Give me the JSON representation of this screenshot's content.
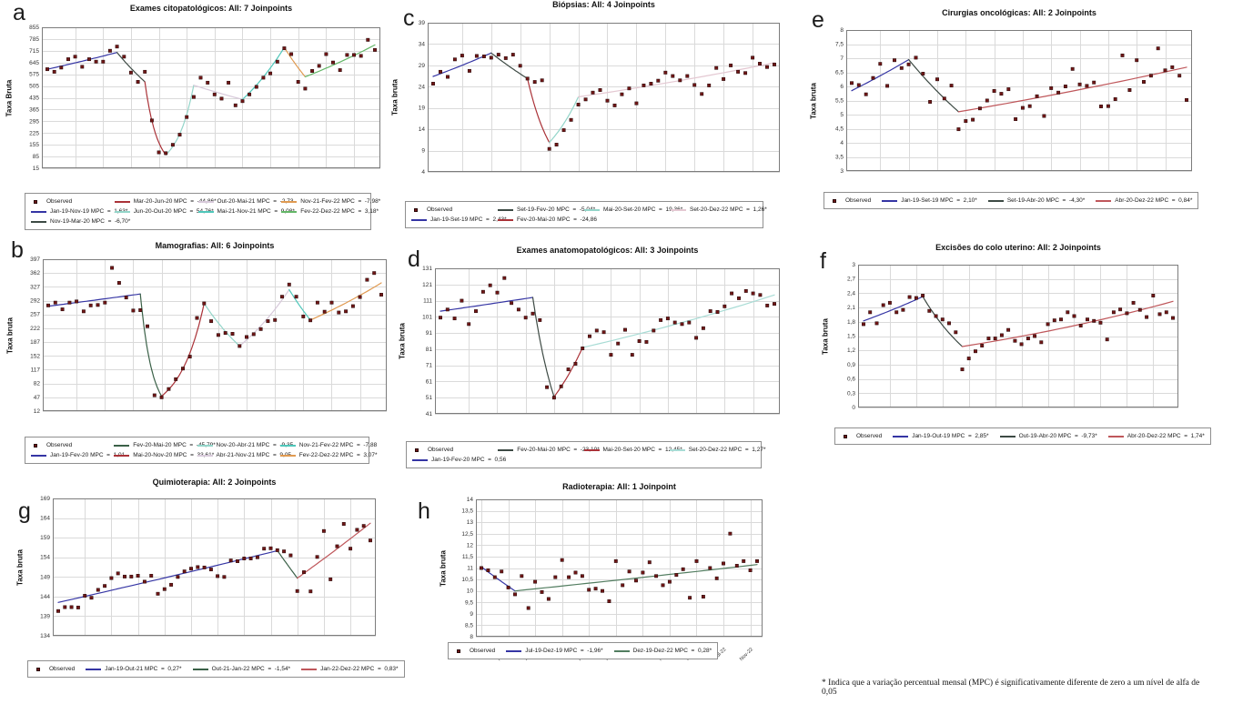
{
  "footnote": "* Indica que a variação percentual mensal (MPC) é significativamente diferente de zero a um nível de alfa de 0,05",
  "colors": {
    "observed_marker": "#701616",
    "grid": "#dadada",
    "plot_border": "#7c7c7c",
    "tick_text": "#333333"
  },
  "chart_data": [
    {
      "panel_label": "a",
      "type": "scatter",
      "title": "Exames citopatológicos: All: 7 Joinpoints",
      "ylabel": "Taxa Bruta",
      "xlabel": "",
      "observed_label": "Observed",
      "ylim": [
        15,
        855
      ],
      "ytick_values": [
        855,
        785,
        715,
        645,
        575,
        505,
        435,
        365,
        295,
        225,
        155,
        85,
        15
      ],
      "ytick_labels": [
        "855",
        "785",
        "715",
        "645",
        "575",
        "505",
        "435",
        "365",
        "295",
        "225",
        "155",
        "85",
        "15"
      ],
      "xtick_labels": [],
      "observed": [
        605,
        590,
        615,
        665,
        680,
        620,
        665,
        650,
        650,
        715,
        740,
        680,
        585,
        530,
        590,
        300,
        110,
        105,
        155,
        215,
        320,
        440,
        555,
        525,
        455,
        430,
        525,
        390,
        415,
        455,
        500,
        555,
        580,
        650,
        730,
        695,
        530,
        490,
        595,
        625,
        695,
        645,
        600,
        690,
        690,
        685,
        780,
        720
      ],
      "segments": [
        {
          "label": "Jan-19-Nov-19 MPC  =  1,63*",
          "color": "#3535a4",
          "from": 0,
          "to": 10,
          "v0": 605,
          "v1": 705
        },
        {
          "label": "Nov-19-Mar-20 MPC  =  -6,70*",
          "color": "#3d4a44",
          "from": 10,
          "to": 14,
          "v0": 705,
          "v1": 530
        },
        {
          "label": "Mar-20-Jun-20 MPC  =  -44,86*",
          "color": "#aa3238",
          "from": 14,
          "to": 17,
          "v0": 530,
          "v1": 95
        },
        {
          "label": "Jun-20-Out-20 MPC  =  54,76*",
          "color": "#93d5c9",
          "from": 17,
          "to": 21,
          "v0": 95,
          "v1": 510
        },
        {
          "label": "Out-20-Mai-21 MPC  =  -2,73",
          "color": "#d7c9da",
          "from": 21,
          "to": 28,
          "v0": 510,
          "v1": 425
        },
        {
          "label": "Mai-21-Nov-21 MPC  =  9,08*",
          "color": "#4fc7ba",
          "from": 28,
          "to": 34,
          "v0": 425,
          "v1": 735
        },
        {
          "label": "Nov-21-Fev-22 MPC  =  -7,98*",
          "color": "#e09a51",
          "from": 34,
          "to": 37,
          "v0": 735,
          "v1": 560
        },
        {
          "label": "Fev-22-Dez-22 MPC  =  3,18*",
          "color": "#63b667",
          "from": 37,
          "to": 47,
          "v0": 560,
          "v1": 750
        }
      ]
    },
    {
      "panel_label": "b",
      "type": "scatter",
      "title": "Mamografias: All: 6 Joinpoints",
      "ylabel": "Taxa bruta",
      "xlabel": "",
      "observed_label": "Observed",
      "ylim": [
        12,
        397
      ],
      "ytick_values": [
        397,
        362,
        327,
        292,
        257,
        222,
        187,
        152,
        117,
        82,
        47,
        12
      ],
      "ytick_labels": [
        "397",
        "362",
        "327",
        "292",
        "257",
        "222",
        "187",
        "152",
        "117",
        "82",
        "47",
        "12"
      ],
      "xtick_labels": [],
      "observed": [
        280,
        287,
        270,
        287,
        290,
        265,
        280,
        281,
        287,
        375,
        337,
        300,
        267,
        268,
        227,
        52,
        47,
        68,
        93,
        120,
        150,
        248,
        285,
        240,
        205,
        210,
        208,
        177,
        200,
        207,
        220,
        240,
        243,
        302,
        333,
        302,
        252,
        242,
        287,
        264,
        287,
        262,
        265,
        278,
        301,
        345,
        362,
        307
      ],
      "segments": [
        {
          "label": "Jan-19-Fev-20 MPC  =  1,01",
          "color": "#3535a4",
          "from": 0,
          "to": 13,
          "v0": 278,
          "v1": 309
        },
        {
          "label": "Fev-20-Mai-20 MPC  =  -45,79*",
          "color": "#3b6148",
          "from": 13,
          "to": 16,
          "v0": 309,
          "v1": 50
        },
        {
          "label": "Mai-20-Nov-20 MPC  =  33,61*",
          "color": "#aa3238",
          "from": 16,
          "to": 22,
          "v0": 50,
          "v1": 285
        },
        {
          "label": "Nov-20-Abr-21 MPC  =  -9,35",
          "color": "#93d5c9",
          "from": 22,
          "to": 27,
          "v0": 285,
          "v1": 177
        },
        {
          "label": "Abr-21-Nov-21 MPC  =  9,05",
          "color": "#d7c9da",
          "from": 27,
          "to": 34,
          "v0": 177,
          "v1": 320
        },
        {
          "label": "Nov-21-Fev-22 MPC  =  -7,88",
          "color": "#4fc7ba",
          "from": 34,
          "to": 37,
          "v0": 320,
          "v1": 243
        },
        {
          "label": "Fev-22-Dez-22 MPC  =  3,07*",
          "color": "#e09a51",
          "from": 37,
          "to": 47,
          "v0": 243,
          "v1": 337
        }
      ]
    },
    {
      "panel_label": "c",
      "type": "scatter",
      "title": "Biópsias: All: 4 Joinpoints",
      "ylabel": "Taxa bruta",
      "xlabel": "",
      "observed_label": "Observed",
      "ylim": [
        4,
        39
      ],
      "ytick_values": [
        39,
        34,
        29,
        24,
        19,
        14,
        9,
        4
      ],
      "ytick_labels": [
        "39",
        "34",
        "29",
        "24",
        "19",
        "14",
        "9",
        "4"
      ],
      "xtick_labels": [],
      "observed": [
        24.7,
        27.5,
        26.3,
        30.4,
        31.3,
        27.7,
        31.2,
        31.1,
        30.8,
        31.5,
        30.7,
        31.5,
        28.9,
        25.9,
        25.1,
        25.5,
        9.4,
        10.4,
        13.8,
        16.2,
        19.8,
        21.0,
        22.6,
        23.2,
        20.7,
        19.6,
        22.2,
        23.6,
        20.1,
        24.3,
        24.7,
        25.4,
        27.3,
        26.5,
        25.5,
        26.5,
        24.4,
        22.3,
        24.3,
        28.4,
        25.8,
        29.0,
        27.5,
        27.2,
        30.8,
        29.4,
        28.6,
        29.2
      ],
      "segments": [
        {
          "label": "Jan-19-Set-19 MPC  =  2,43*",
          "color": "#3535a4",
          "from": 0,
          "to": 8,
          "v0": 26.4,
          "v1": 31.9
        },
        {
          "label": "Set-19-Fev-20 MPC  =  -5,04*",
          "color": "#3d4a44",
          "from": 8,
          "to": 13,
          "v0": 31.9,
          "v1": 25.9
        },
        {
          "label": "Fev-20-Mai-20 MPC  =  -24,86",
          "color": "#aa3238",
          "from": 13,
          "to": 16,
          "v0": 25.9,
          "v1": 10.9
        },
        {
          "label": "Mai-20-Set-20 MPC  =  19,36*",
          "color": "#93d5c9",
          "from": 16,
          "to": 20,
          "v0": 10.9,
          "v1": 21.6
        },
        {
          "label": "Set-20-Dez-22 MPC  =  1,26*",
          "color": "#e4c8d2",
          "from": 20,
          "to": 47,
          "v0": 21.6,
          "v1": 29.6
        }
      ]
    },
    {
      "panel_label": "d",
      "type": "scatter",
      "title": "Exames anatomopatológicos: All: 3 Joinpoints",
      "ylabel": "Taxa bruta",
      "xlabel": "",
      "observed_label": "Observed",
      "ylim": [
        41,
        131
      ],
      "ytick_values": [
        131,
        121,
        111,
        101,
        91,
        81,
        71,
        61,
        51,
        41
      ],
      "ytick_labels": [
        "131",
        "121",
        "111",
        "101",
        "91",
        "81",
        "71",
        "61",
        "51",
        "41"
      ],
      "xtick_labels": [],
      "observed": [
        100.5,
        105.5,
        100,
        111,
        96.5,
        104.5,
        116.5,
        120.5,
        116,
        125,
        109.5,
        105.5,
        100.5,
        103,
        99,
        57.5,
        51,
        58,
        68.5,
        72,
        81.5,
        89,
        92.5,
        91.5,
        77.5,
        84.5,
        93,
        77.5,
        86,
        85.5,
        92.5,
        99,
        100,
        97.5,
        96.5,
        97.5,
        88,
        94,
        104.5,
        104,
        107.5,
        115.5,
        112.5,
        117,
        115.5,
        114.5,
        108,
        109
      ],
      "segments": [
        {
          "label": "Jan-19-Fev-20 MPC  =  0,56",
          "color": "#3535a4",
          "from": 0,
          "to": 13,
          "v0": 104.5,
          "v1": 113
        },
        {
          "label": "Fev-20-Mai-20 MPC  =  -23,10*",
          "color": "#3d4a44",
          "from": 13,
          "to": 16,
          "v0": 113,
          "v1": 51.5
        },
        {
          "label": "Mai-20-Set-20 MPC  =  12,45*",
          "color": "#aa3238",
          "from": 16,
          "to": 20,
          "v0": 51.5,
          "v1": 82
        },
        {
          "label": "Set-20-Dez-22 MPC  =  1,27*",
          "color": "#a8dcd5",
          "from": 20,
          "to": 47,
          "v0": 82,
          "v1": 114.5
        }
      ]
    },
    {
      "panel_label": "e",
      "type": "scatter",
      "title": "Cirurgias oncológicas: All: 2 Joinpoints",
      "ylabel": "Taxa bruta",
      "xlabel": "",
      "observed_label": "Observed",
      "ylim": [
        3,
        8
      ],
      "ytick_values": [
        8,
        7.5,
        7,
        6.5,
        6,
        5.5,
        5,
        4.5,
        4,
        3.5,
        3
      ],
      "ytick_labels": [
        "8",
        "7,5",
        "7",
        "6,5",
        "6",
        "5,5",
        "5",
        "4,5",
        "4",
        "3,5",
        "3"
      ],
      "xtick_labels": [],
      "observed": [
        6.12,
        6.05,
        5.72,
        6.3,
        6.8,
        6.02,
        6.93,
        6.65,
        6.78,
        7.02,
        6.45,
        5.45,
        6.25,
        5.57,
        6.03,
        4.48,
        4.77,
        4.82,
        5.22,
        5.5,
        5.84,
        5.74,
        5.9,
        4.84,
        5.24,
        5.3,
        5.65,
        4.95,
        5.94,
        5.78,
        6.0,
        6.62,
        6.07,
        6.02,
        6.14,
        5.29,
        5.3,
        5.55,
        7.1,
        5.87,
        6.93,
        6.16,
        6.38,
        7.35,
        6.57,
        6.68,
        6.38,
        5.52
      ],
      "segments": [
        {
          "label": "Jan-19-Set-19 MPC  =  2,10*",
          "color": "#3535a4",
          "from": 0,
          "to": 8,
          "v0": 5.85,
          "v1": 6.95
        },
        {
          "label": "Set-19-Abr-20 MPC  =  -4,30*",
          "color": "#3d4a44",
          "from": 8,
          "to": 15,
          "v0": 6.95,
          "v1": 5.1
        },
        {
          "label": "Abr-20-Dez-22 MPC  =  0,84*",
          "color": "#bf575b",
          "from": 15,
          "to": 47,
          "v0": 5.1,
          "v1": 6.68
        }
      ]
    },
    {
      "panel_label": "f",
      "type": "scatter",
      "title": "Excisões do colo uterino: All: 2 Joinpoints",
      "ylabel": "Taxa bruta",
      "xlabel": "",
      "observed_label": "Observed",
      "ylim": [
        0,
        3
      ],
      "ytick_values": [
        3,
        2.7,
        2.4,
        2.1,
        1.8,
        1.5,
        1.2,
        0.9,
        0.6,
        0.3,
        0
      ],
      "ytick_labels": [
        "3",
        "2,7",
        "2,4",
        "2,1",
        "1,8",
        "1,5",
        "1,2",
        "0,9",
        "0,6",
        "0,3",
        "0"
      ],
      "xtick_labels": [],
      "observed": [
        1.75,
        2.0,
        1.77,
        2.15,
        2.2,
        2.0,
        2.05,
        2.32,
        2.3,
        2.35,
        2.03,
        1.92,
        1.85,
        1.77,
        1.58,
        0.8,
        1.03,
        1.18,
        1.3,
        1.45,
        1.45,
        1.52,
        1.63,
        1.4,
        1.33,
        1.45,
        1.5,
        1.37,
        1.75,
        1.83,
        1.85,
        2.0,
        1.92,
        1.72,
        1.85,
        1.82,
        1.78,
        1.43,
        2.0,
        2.06,
        1.98,
        2.2,
        2.05,
        1.9,
        2.35,
        1.96,
        2.0,
        1.88
      ],
      "segments": [
        {
          "label": "Jan-19-Out-19 MPC  =  2,85*",
          "color": "#3535a4",
          "from": 0,
          "to": 9,
          "v0": 1.82,
          "v1": 2.33
        },
        {
          "label": "Out-19-Abr-20 MPC  =  -9,73*",
          "color": "#3d4a44",
          "from": 9,
          "to": 15,
          "v0": 2.33,
          "v1": 1.28
        },
        {
          "label": "Abr-20-Dez-22 MPC  =  1,74*",
          "color": "#bf575b",
          "from": 15,
          "to": 47,
          "v0": 1.28,
          "v1": 2.23
        }
      ]
    },
    {
      "panel_label": "g",
      "type": "scatter",
      "title": "Quimioterapia: All: 2 Joinpoints",
      "ylabel": "Taxa bruta",
      "xlabel": "",
      "observed_label": "Observed",
      "ylim": [
        134,
        169
      ],
      "ytick_values": [
        169,
        164,
        159,
        154,
        149,
        144,
        139,
        134
      ],
      "ytick_labels": [
        "169",
        "164",
        "159",
        "154",
        "149",
        "144",
        "139",
        "134"
      ],
      "xtick_labels": [],
      "observed": [
        140.3,
        141.3,
        141.3,
        141.2,
        144.2,
        143.7,
        145.7,
        146.7,
        148.7,
        149.9,
        149.1,
        149.1,
        149.3,
        147.8,
        149.3,
        144.7,
        145.9,
        147.0,
        149.0,
        150.4,
        151.1,
        151.5,
        151.4,
        150.9,
        149.2,
        149.0,
        153.2,
        153.0,
        153.7,
        153.7,
        154.0,
        156.2,
        156.3,
        155.8,
        155.5,
        154.5,
        145.4,
        150.2,
        145.3,
        154.1,
        160.7,
        148.4,
        156.8,
        162.5,
        156.2,
        161.0,
        162.0,
        158.3
      ],
      "segments": [
        {
          "label": "Jan-19-Out-21 MPC  =  0,27*",
          "color": "#3535a4",
          "from": 0,
          "to": 33,
          "v0": 142.5,
          "v1": 155.7
        },
        {
          "label": "Out-21-Jan-22 MPC  =  -1,54*",
          "color": "#3b6148",
          "from": 33,
          "to": 36,
          "v0": 155.7,
          "v1": 148.7
        },
        {
          "label": "Jan-22-Dez-22 MPC  =  0,83*",
          "color": "#bf575b",
          "from": 36,
          "to": 47,
          "v0": 148.7,
          "v1": 162.7
        }
      ]
    },
    {
      "panel_label": "h",
      "type": "scatter",
      "title": "Radioterapia: All: 1 Joinpoint",
      "ylabel": "Taxa bruta",
      "xlabel": "",
      "observed_label": "Observed",
      "ylim": [
        8,
        14
      ],
      "ytick_values": [
        14,
        13.5,
        13,
        12.5,
        12,
        11.5,
        11,
        10.5,
        10,
        9.5,
        9,
        8.5,
        8
      ],
      "ytick_labels": [
        "14",
        "13,5",
        "13",
        "12,5",
        "12",
        "11,5",
        "11",
        "10,5",
        "10",
        "9,5",
        "9",
        "8,5",
        "8"
      ],
      "xtick_labels": [
        "Jul-19",
        "Nov-19",
        "Mar-20",
        "Jul-20",
        "Nov-20",
        "Mar-21",
        "Jul-21",
        "Nov-21",
        "Mar-22",
        "Jul-22",
        "Nov-22"
      ],
      "xtick_positions": [
        0,
        4,
        8,
        12,
        16,
        20,
        24,
        28,
        32,
        36,
        40
      ],
      "observed": [
        11.0,
        10.9,
        10.6,
        10.85,
        10.15,
        9.85,
        10.65,
        9.25,
        10.4,
        9.95,
        9.65,
        10.6,
        11.35,
        10.6,
        10.8,
        10.65,
        10.05,
        10.1,
        10.0,
        9.55,
        11.3,
        10.25,
        10.85,
        10.45,
        10.8,
        11.25,
        10.65,
        10.25,
        10.4,
        10.7,
        10.95,
        9.7,
        11.3,
        9.75,
        11.0,
        10.55,
        11.2,
        12.5,
        11.1,
        11.3,
        10.9,
        11.3
      ],
      "segments": [
        {
          "label": "Jul-19-Dez-19 MPC  =  -1,96*",
          "color": "#3535a4",
          "from": 0,
          "to": 5,
          "v0": 11.05,
          "v1": 10.0
        },
        {
          "label": "Dez-19-Dez-22 MPC  =  0,28*",
          "color": "#527d60",
          "from": 5,
          "to": 41,
          "v0": 10.0,
          "v1": 11.15
        }
      ]
    }
  ]
}
